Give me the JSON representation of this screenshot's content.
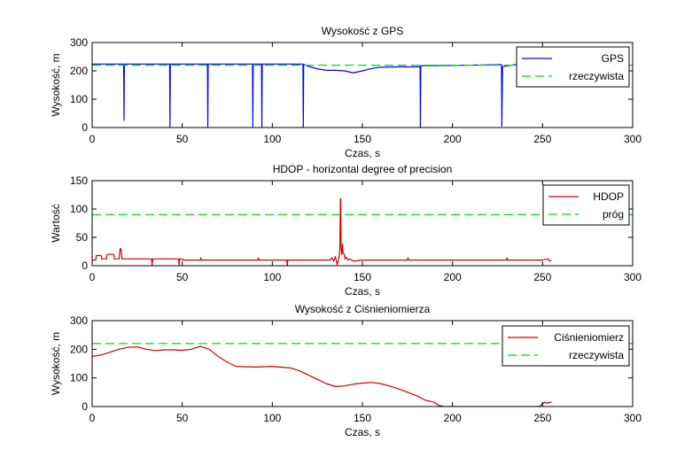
{
  "chart_data": [
    {
      "type": "line",
      "title": "Wysokość z GPS",
      "xlabel": "Czas, s",
      "ylabel": "Wysokość, m",
      "xlim": [
        0,
        300
      ],
      "ylim": [
        0,
        300
      ],
      "xticks": [
        0,
        50,
        100,
        150,
        200,
        250,
        300
      ],
      "yticks": [
        0,
        100,
        200,
        300
      ],
      "legend": "top-right",
      "series": [
        {
          "name": "GPS",
          "color": "#0000ff",
          "style": "solid",
          "x": [
            0,
            17.5,
            17.7,
            17.9,
            18.3,
            43,
            43.2,
            43.4,
            43.8,
            64,
            64.2,
            64.4,
            64.8,
            89,
            89.2,
            89.4,
            89.8,
            94,
            94.2,
            94.4,
            94.8,
            117,
            117.2,
            117.4,
            117.8,
            120,
            125,
            130,
            135,
            140,
            145,
            150,
            155,
            160,
            170,
            182,
            182.2,
            182.4,
            182.8,
            200,
            227,
            227.2,
            227.4,
            227.8,
            235,
            240,
            250,
            255
          ],
          "y": [
            224,
            224,
            25,
            220,
            224,
            224,
            0,
            224,
            224,
            224,
            0,
            224,
            224,
            224,
            0,
            224,
            224,
            224,
            0,
            224,
            224,
            224,
            0,
            222,
            222,
            216,
            207,
            202,
            202,
            200,
            193,
            200,
            208,
            213,
            214,
            214,
            0,
            218,
            218,
            219,
            222,
            222,
            5,
            215,
            222,
            222,
            222,
            223
          ]
        },
        {
          "name": "rzeczywista",
          "color": "#00dd00",
          "style": "dashed",
          "x": [
            0,
            300
          ],
          "y": [
            220,
            220
          ]
        }
      ]
    },
    {
      "type": "line",
      "title": "HDOP - horizontal degree of precision",
      "xlabel": "Czas, s",
      "ylabel": "Wartość",
      "xlim": [
        0,
        300
      ],
      "ylim": [
        0,
        150
      ],
      "xticks": [
        0,
        50,
        100,
        150,
        200,
        250,
        300
      ],
      "yticks": [
        0,
        50,
        100,
        150
      ],
      "legend": "top-right",
      "series": [
        {
          "name": "HDOP",
          "color": "#cc0000",
          "style": "solid",
          "x": [
            0,
            2,
            2.3,
            5,
            5.3,
            8,
            8.3,
            12,
            12.3,
            15,
            15.5,
            16,
            16.5,
            17,
            17.5,
            33,
            33.3,
            33.6,
            48,
            48.3,
            48.6,
            50,
            50.3,
            60,
            60.3,
            60.6,
            92,
            92.3,
            92.6,
            108,
            108.3,
            108.6,
            132,
            133,
            134,
            135,
            136,
            137,
            137.5,
            137.8,
            138,
            138.2,
            138.5,
            139,
            139.3,
            140,
            140.3,
            141,
            142,
            143,
            144,
            145,
            150,
            175,
            175.3,
            175.6,
            200,
            220,
            230,
            230.3,
            230.6,
            250,
            253,
            254,
            255
          ],
          "y": [
            10,
            10,
            18,
            18,
            12,
            12,
            20,
            20,
            12,
            12,
            30,
            30,
            12,
            12,
            12,
            12,
            0,
            12,
            12,
            0,
            12,
            12,
            10,
            10,
            14,
            10,
            10,
            14,
            10,
            10,
            0,
            10,
            10,
            14,
            8,
            16,
            2,
            14,
            30,
            118,
            118,
            30,
            20,
            38,
            22,
            20,
            12,
            15,
            10,
            12,
            10,
            8,
            10,
            10,
            14,
            10,
            10,
            10,
            10,
            14,
            10,
            10,
            12,
            8,
            10
          ]
        },
        {
          "name": "próg",
          "color": "#00dd00",
          "style": "dashed",
          "x": [
            0,
            300
          ],
          "y": [
            90,
            90
          ]
        }
      ]
    },
    {
      "type": "line",
      "title": "Wysokość z Ciśnieniomierza",
      "xlabel": "Czas, s",
      "ylabel": "Wysokość, m",
      "xlim": [
        0,
        300
      ],
      "ylim": [
        0,
        300
      ],
      "xticks": [
        0,
        50,
        100,
        150,
        200,
        250,
        300
      ],
      "yticks": [
        0,
        100,
        200,
        300
      ],
      "legend": "top-right",
      "series": [
        {
          "name": "Ciśnieniomierz",
          "color": "#cc0000",
          "style": "solid",
          "x": [
            0,
            5,
            10,
            15,
            20,
            25,
            30,
            35,
            40,
            45,
            50,
            55,
            60,
            65,
            70,
            75,
            80,
            90,
            100,
            110,
            115,
            120,
            125,
            130,
            135,
            140,
            145,
            150,
            155,
            160,
            165,
            170,
            175,
            180,
            185,
            188,
            190,
            192,
            195,
            200,
            210,
            220,
            230,
            240,
            248,
            249,
            250,
            251,
            252,
            255
          ],
          "y": [
            175,
            180,
            190,
            200,
            207,
            208,
            200,
            195,
            198,
            198,
            196,
            200,
            210,
            200,
            175,
            155,
            140,
            138,
            140,
            135,
            125,
            110,
            95,
            80,
            70,
            72,
            78,
            82,
            84,
            80,
            72,
            62,
            50,
            38,
            22,
            18,
            15,
            5,
            0,
            0,
            0,
            0,
            0,
            0,
            0,
            4,
            10,
            15,
            12,
            15
          ]
        },
        {
          "name": "rzeczywista",
          "color": "#00dd00",
          "style": "dashed",
          "x": [
            0,
            300
          ],
          "y": [
            220,
            220
          ]
        }
      ]
    }
  ]
}
